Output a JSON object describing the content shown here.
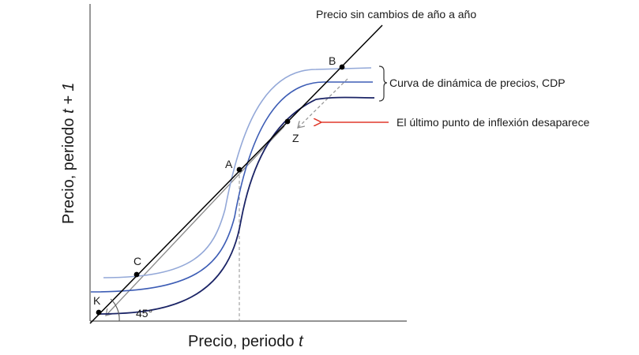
{
  "axes": {
    "x_label_prefix": "Precio, periodo ",
    "x_label_var": "t",
    "y_label_prefix": "Precio, periodo ",
    "y_label_var": "t + 1"
  },
  "labels": {
    "no_change_line": "Precio sin cambios de año a año",
    "cdp_bracket": "Curva de dinámica de precios, CDP",
    "inflection_note": "El último punto de inflexión desaparece",
    "angle": "45°"
  },
  "points": {
    "A": "A",
    "B": "B",
    "C": "C",
    "K": "K",
    "Z": "Z"
  },
  "colors": {
    "axis": "#555555",
    "line_45": "#000000",
    "curve_light": "#93a8d8",
    "curve_mid": "#3d5db5",
    "curve_dark": "#1b2466",
    "arrow_red": "#e0392b",
    "dashed": "#9a9a9a"
  }
}
